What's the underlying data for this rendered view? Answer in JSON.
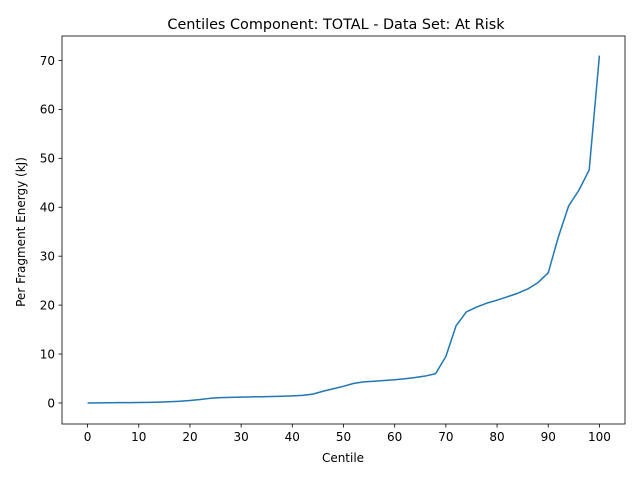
{
  "chart_data": {
    "type": "line",
    "title": "Centiles Component: TOTAL - Data Set: At Risk",
    "xlabel": "Centile",
    "ylabel": "Per Fragment Energy (kJ)",
    "xlim": [
      -5,
      105
    ],
    "ylim": [
      -4.3,
      75
    ],
    "xticks": [
      0,
      10,
      20,
      30,
      40,
      50,
      60,
      70,
      80,
      90,
      100
    ],
    "yticks": [
      0,
      10,
      20,
      30,
      40,
      50,
      60,
      70
    ],
    "grid": false,
    "legend": "none",
    "color": "#1f77b4",
    "series": [
      {
        "x": [
          0,
          2,
          4,
          6,
          8,
          10,
          12,
          14,
          16,
          18,
          20,
          22,
          24,
          26,
          28,
          30,
          32,
          34,
          36,
          38,
          40,
          42,
          44,
          46,
          48,
          50,
          52,
          54,
          56,
          58,
          60,
          62,
          64,
          66,
          68,
          70,
          72,
          74,
          76,
          78,
          80,
          82,
          84,
          86,
          88,
          90,
          92,
          94,
          96,
          98,
          100
        ],
        "values": [
          0.0,
          0.02,
          0.04,
          0.06,
          0.08,
          0.1,
          0.13,
          0.18,
          0.25,
          0.35,
          0.5,
          0.7,
          0.95,
          1.1,
          1.15,
          1.2,
          1.25,
          1.28,
          1.32,
          1.38,
          1.45,
          1.55,
          1.8,
          2.4,
          2.9,
          3.4,
          4.0,
          4.3,
          4.45,
          4.6,
          4.75,
          4.95,
          5.2,
          5.5,
          6.0,
          9.5,
          15.8,
          18.6,
          19.6,
          20.4,
          21.0,
          21.7,
          22.4,
          23.3,
          24.6,
          26.6,
          34.0,
          40.3,
          43.5,
          47.6,
          71.0
        ]
      }
    ]
  }
}
